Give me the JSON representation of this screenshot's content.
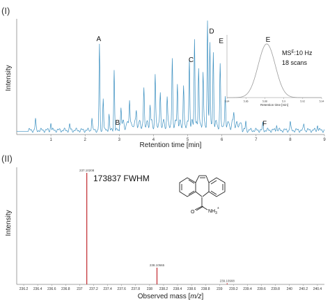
{
  "panels": [
    {
      "label": "(I)"
    },
    {
      "label": "(II)"
    }
  ],
  "colors": {
    "chromatogram": "#3a8fc0",
    "spectrum": "#c0282d",
    "inset": "#9a9a9a"
  },
  "chart_data": [
    {
      "type": "line",
      "panel": "(I)",
      "xlabel": "Retention time [min]",
      "ylabel": "Intensity",
      "xlim": [
        0,
        9
      ],
      "x_ticks": [
        "1",
        "2",
        "3",
        "4",
        "5",
        "6",
        "7",
        "8",
        "9"
      ],
      "peaks": [
        {
          "rt": 0.55,
          "h": 0.1
        },
        {
          "rt": 1.0,
          "h": 0.07
        },
        {
          "rt": 1.55,
          "h": 0.05
        },
        {
          "rt": 2.2,
          "h": 0.12
        },
        {
          "rt": 2.42,
          "h": 0.77
        },
        {
          "rt": 2.53,
          "h": 0.3
        },
        {
          "rt": 2.7,
          "h": 0.15
        },
        {
          "rt": 2.85,
          "h": 0.55
        },
        {
          "rt": 3.05,
          "h": 0.18
        },
        {
          "rt": 3.3,
          "h": 0.25
        },
        {
          "rt": 3.5,
          "h": 0.15
        },
        {
          "rt": 3.72,
          "h": 0.33
        },
        {
          "rt": 3.9,
          "h": 0.2
        },
        {
          "rt": 4.05,
          "h": 0.45
        },
        {
          "rt": 4.2,
          "h": 0.3
        },
        {
          "rt": 4.4,
          "h": 0.25
        },
        {
          "rt": 4.55,
          "h": 0.6
        },
        {
          "rt": 4.7,
          "h": 0.4
        },
        {
          "rt": 4.88,
          "h": 0.35
        },
        {
          "rt": 5.05,
          "h": 0.62
        },
        {
          "rt": 5.2,
          "h": 0.8
        },
        {
          "rt": 5.32,
          "h": 0.52
        },
        {
          "rt": 5.45,
          "h": 0.48
        },
        {
          "rt": 5.58,
          "h": 0.95
        },
        {
          "rt": 5.65,
          "h": 0.77
        },
        {
          "rt": 5.75,
          "h": 0.66
        },
        {
          "rt": 5.95,
          "h": 0.52
        },
        {
          "rt": 6.1,
          "h": 0.25
        },
        {
          "rt": 6.35,
          "h": 0.12
        },
        {
          "rt": 6.7,
          "h": 0.08
        },
        {
          "rt": 7.2,
          "h": 0.06
        },
        {
          "rt": 7.6,
          "h": 0.05
        },
        {
          "rt": 8.0,
          "h": 0.08
        },
        {
          "rt": 8.4,
          "h": 0.06
        },
        {
          "rt": 8.8,
          "h": 0.05
        }
      ],
      "annotations": [
        {
          "text": "A",
          "rt": 2.4,
          "h": 0.83
        },
        {
          "text": "B",
          "rt": 2.95,
          "h": 0.07
        },
        {
          "text": "C",
          "rt": 5.1,
          "h": 0.64
        },
        {
          "text": "D",
          "rt": 5.7,
          "h": 0.9
        },
        {
          "text": "E",
          "rt": 5.98,
          "h": 0.81
        },
        {
          "text": "F",
          "rt": 7.25,
          "h": 0.06
        }
      ],
      "inset": {
        "type": "line",
        "title": "E",
        "xlabel": "Retention time [min]",
        "xlim": [
          5.84,
          5.94
        ],
        "x_ticks": [
          "5.84",
          "5.86",
          "5.88",
          "5.9",
          "5.92",
          "5.94"
        ],
        "peak_center": 5.882,
        "peak_sigma": 0.009,
        "text_line1_main": "MS",
        "text_line1_sup": "E",
        "text_line1_rest": ":10 Hz",
        "text_line2": "18 scans"
      }
    },
    {
      "type": "bar",
      "panel": "(II)",
      "xlabel_main": "Observed mass [",
      "xlabel_italic": "m/z",
      "xlabel_end": "]",
      "ylabel": "Intensity",
      "xlim": [
        236.1,
        240.5
      ],
      "x_ticks": [
        "236.2",
        "236.4",
        "236.6",
        "236.8",
        "237",
        "237.2",
        "237.4",
        "237.6",
        "237.8",
        "238",
        "238.2",
        "238.4",
        "238.6",
        "238.8",
        "239",
        "239.2",
        "239.4",
        "239.6",
        "239.8",
        "240",
        "240.2",
        "240.4"
      ],
      "peaks": [
        {
          "mz": 237.10208,
          "label": "237.10208",
          "rel": 1.0
        },
        {
          "mz": 238.10565,
          "label": "238.10565",
          "rel": 0.15
        },
        {
          "mz": 239.10908,
          "label": "239.10908",
          "rel": 0.01
        }
      ],
      "resolution_label": "173837 FWHM",
      "structure_label": "NH",
      "structure_sub": "3",
      "structure_sup": "+"
    }
  ]
}
